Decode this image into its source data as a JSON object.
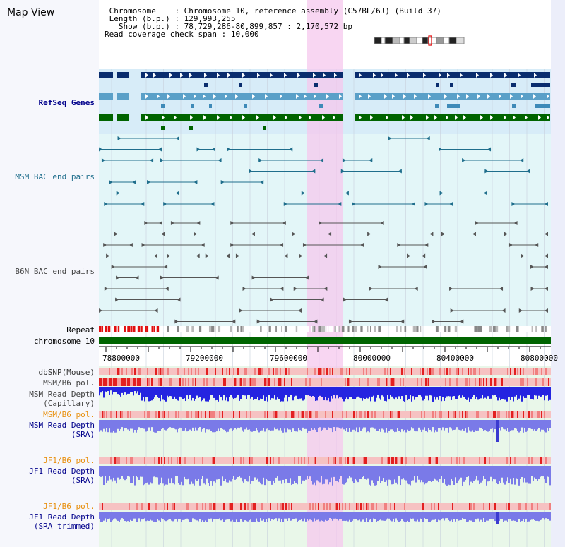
{
  "title": "Map View",
  "info": {
    "rows": [
      {
        "key": " Chromosome    ",
        "value": "Chromosome 10, reference assembly (C57BL/6J) (Build 37)"
      },
      {
        "key": " Length (b.p.) ",
        "value": "129,993,255"
      },
      {
        "key": "   Show (b.p.) ",
        "value": "78,729,286-80,899,857 : 2,170,572 bp"
      },
      {
        "key": "Read coverage check span",
        "value": "10,000"
      }
    ]
  },
  "tracks": {
    "refseq": "RefSeq Genes",
    "msm_bac": "MSM BAC end pairs",
    "b6n_bac": "B6N BAC end pairs",
    "repeat": "Repeat",
    "chromosome": "chromosome 10",
    "dbsnp": "dbSNP(Mouse)",
    "msm_pol": "MSM/B6 pol.",
    "msm_depth_cap_1": "MSM Read Depth",
    "msm_depth_cap_2": "(Capillary)",
    "msm_pol2": "MSM/B6 pol.",
    "msm_depth_sra_1": "MSM Read Depth",
    "msm_depth_sra_2": "(SRA)",
    "jf1_pol": "JF1/B6 pol.",
    "jf1_depth_1": "JF1 Read Depth",
    "jf1_depth_2": "(SRA)",
    "jf1_pol2": "JF1/B6 pol.",
    "jf1_trim_1": "JF1 Read Depth",
    "jf1_trim_2": "(SRA trimmed)"
  },
  "axis": {
    "ticks": [
      "78800000",
      "79200000",
      "79600000",
      "80000000",
      "80400000",
      "80800000"
    ]
  },
  "colors": {
    "refseq_dark": "#0a2d6e",
    "refseq_mid": "#3e8ab8",
    "refseq_light": "#5aa0c8",
    "refseq_green": "#006400",
    "bac_msm": "#1f6e8c",
    "bac_b6n": "#555555",
    "highlight": "#f5c8ee",
    "label_blue": "#00008b",
    "label_teal": "#1f6e8c",
    "label_orange": "#e8900f",
    "label_gray": "#444444",
    "chromosome_bar": "#006400",
    "depth_capillary": "#2424e0",
    "depth_sra": "#7a7ae8",
    "pol_red": "#e22020",
    "pol_pink": "#f6c2c2"
  }
}
